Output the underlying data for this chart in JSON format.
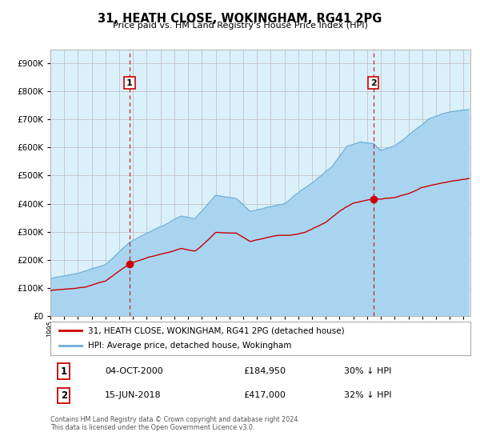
{
  "title": "31, HEATH CLOSE, WOKINGHAM, RG41 2PG",
  "subtitle": "Price paid vs. HM Land Registry's House Price Index (HPI)",
  "hpi_color": "#A8D4F0",
  "hpi_line_color": "#6AAED6",
  "price_color": "#CC0000",
  "bg_color": "#DAF0FA",
  "grid_color": "#BBBBBB",
  "purchase1_date": 2000.75,
  "purchase1_price": 184950,
  "purchase2_date": 2018.45,
  "purchase2_price": 417000,
  "ylim": [
    0,
    950000
  ],
  "xlim": [
    1995.0,
    2025.5
  ],
  "legend_label_price": "31, HEATH CLOSE, WOKINGHAM, RG41 2PG (detached house)",
  "legend_label_hpi": "HPI: Average price, detached house, Wokingham",
  "note1_date": "04-OCT-2000",
  "note1_price": "£184,950",
  "note1_pct": "30% ↓ HPI",
  "note2_date": "15-JUN-2018",
  "note2_price": "£417,000",
  "note2_pct": "32% ↓ HPI",
  "footer": "Contains HM Land Registry data © Crown copyright and database right 2024.\nThis data is licensed under the Open Government Licence v3.0."
}
